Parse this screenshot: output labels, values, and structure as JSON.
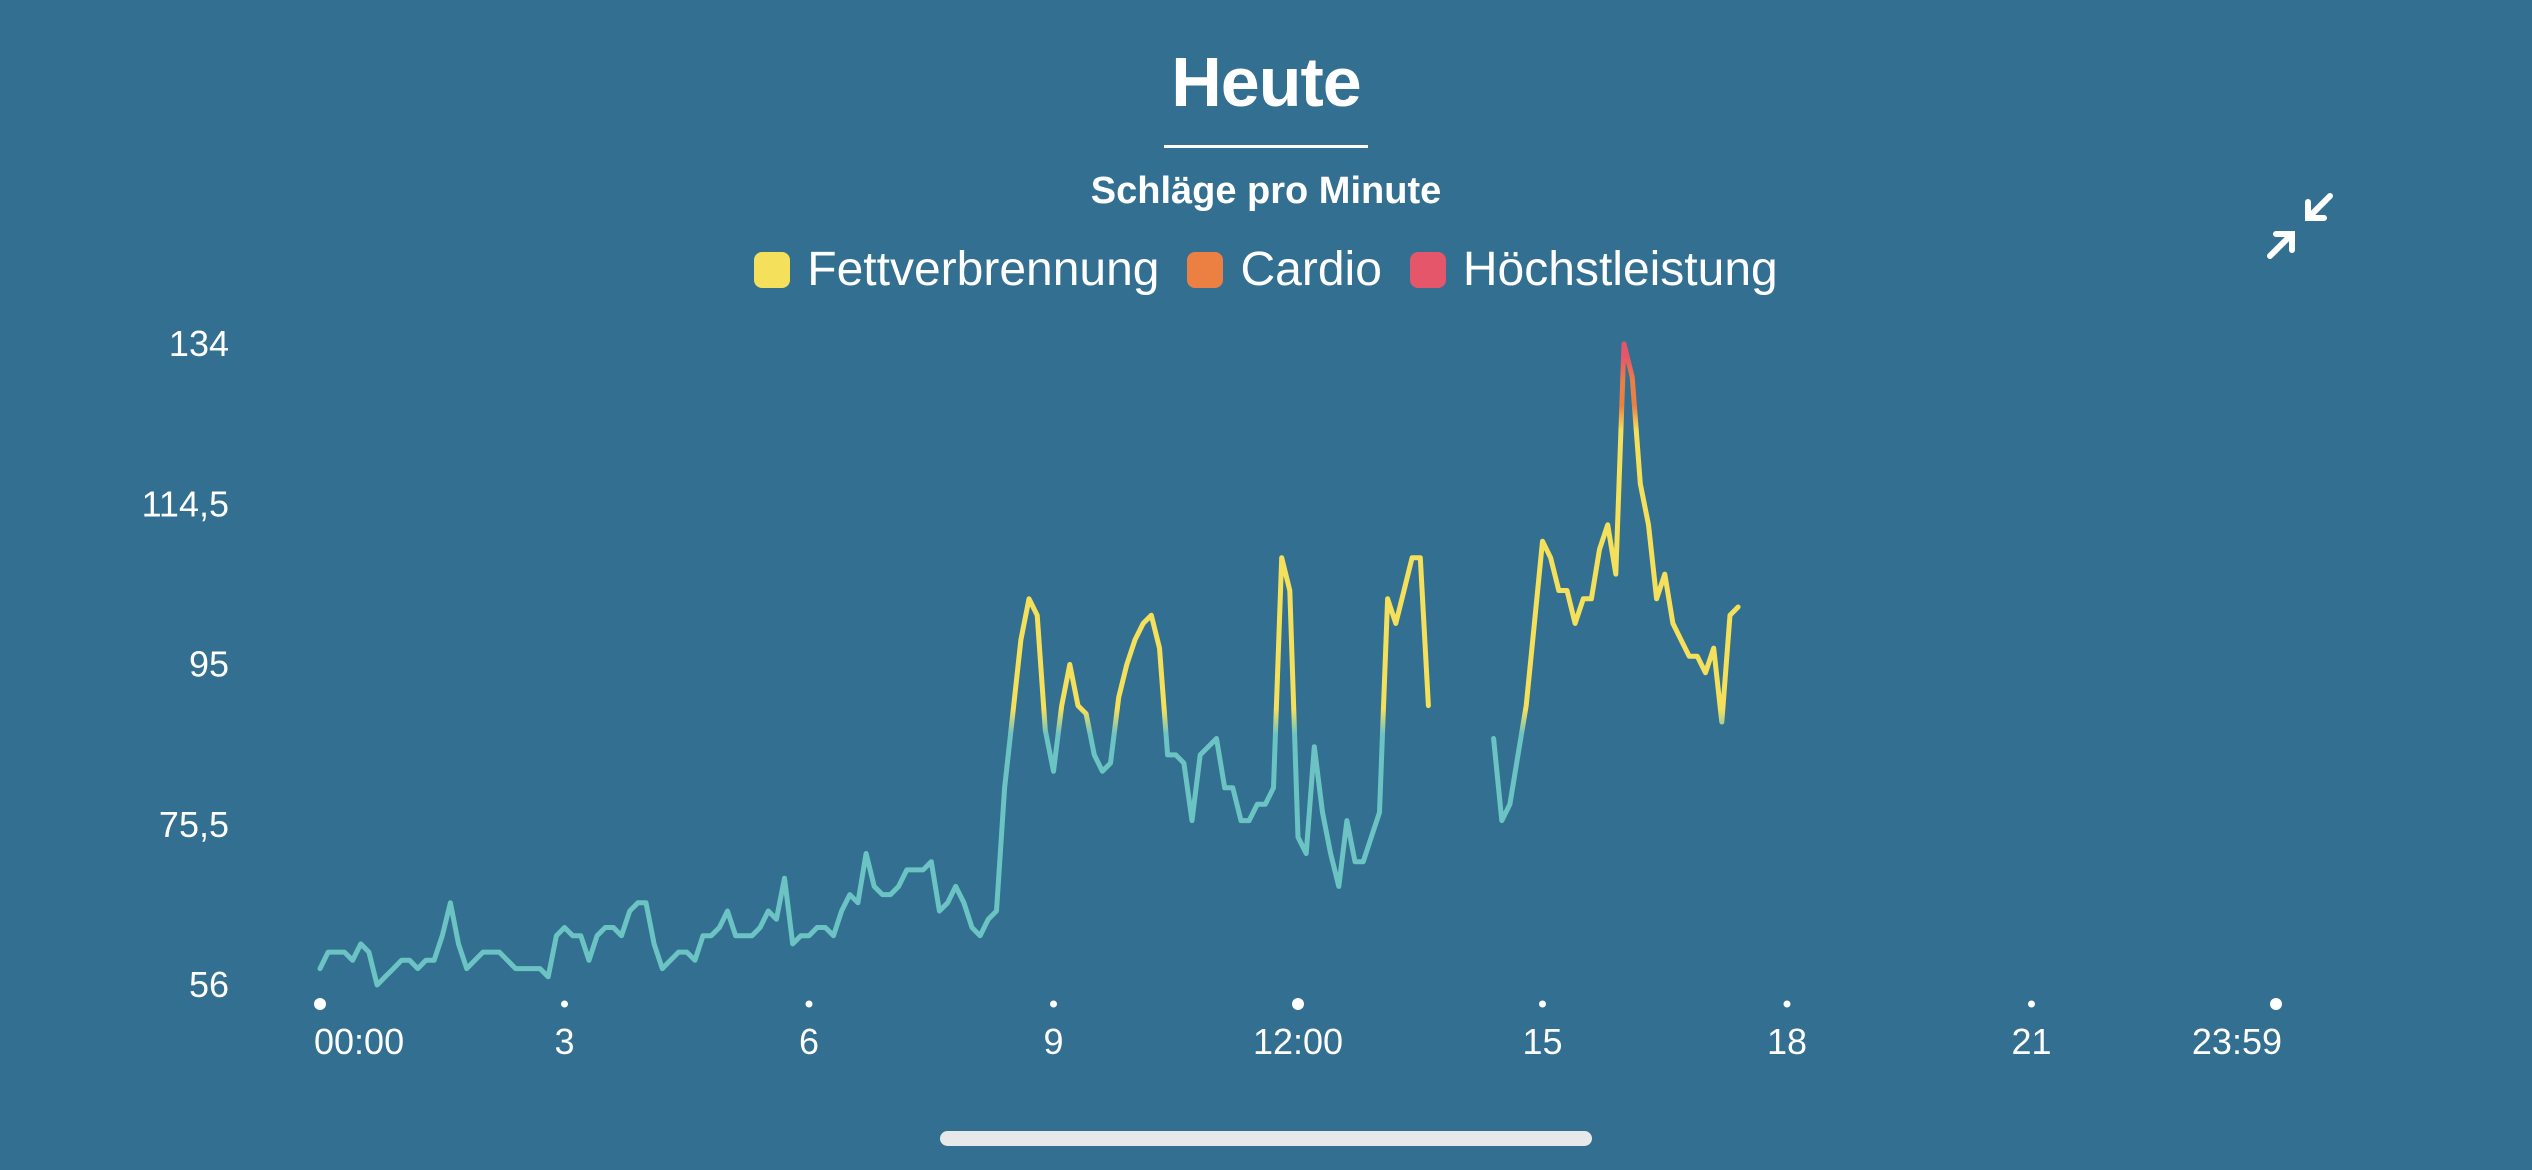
{
  "title": "Heute",
  "subtitle": "Schläge pro Minute",
  "legend": [
    {
      "label": "Fettverbrennung",
      "color": "#f4e05a"
    },
    {
      "label": "Cardio",
      "color": "#ec7f42"
    },
    {
      "label": "Höchstleistung",
      "color": "#e5566a"
    }
  ],
  "collapse_button": {
    "icon": "collapse-arrows-icon"
  },
  "chart_data": {
    "type": "line",
    "title": "Heute",
    "ylabel": "Schläge pro Minute",
    "ylim": [
      56,
      134
    ],
    "yticks": [
      {
        "value": 134,
        "label": "134"
      },
      {
        "value": 114.5,
        "label": "114,5"
      },
      {
        "value": 95,
        "label": "95"
      },
      {
        "value": 75.5,
        "label": "75,5"
      },
      {
        "value": 56,
        "label": "56"
      }
    ],
    "xlim": [
      0,
      24
    ],
    "xticks": [
      {
        "value": 0,
        "label": "00:00",
        "major": true
      },
      {
        "value": 3,
        "label": "3",
        "major": false
      },
      {
        "value": 6,
        "label": "6",
        "major": false
      },
      {
        "value": 9,
        "label": "9",
        "major": false
      },
      {
        "value": 12,
        "label": "12:00",
        "major": true
      },
      {
        "value": 15,
        "label": "15",
        "major": false
      },
      {
        "value": 18,
        "label": "18",
        "major": false
      },
      {
        "value": 21,
        "label": "21",
        "major": false
      },
      {
        "value": 24,
        "label": "23:59",
        "major": true
      }
    ],
    "zones": [
      {
        "name": "Fettverbrennung",
        "min": 88,
        "color": "#f4e05a"
      },
      {
        "name": "Cardio",
        "min": 125,
        "color": "#ec7f42"
      },
      {
        "name": "Höchstleistung",
        "min": 131,
        "color": "#e5566a"
      }
    ],
    "base_color": "#6cc3c3",
    "series": [
      {
        "values": [
          [
            0.0,
            58
          ],
          [
            0.1,
            60
          ],
          [
            0.2,
            60
          ],
          [
            0.3,
            60
          ],
          [
            0.4,
            59
          ],
          [
            0.5,
            61
          ],
          [
            0.6,
            60
          ],
          [
            0.7,
            56
          ],
          [
            0.8,
            57
          ],
          [
            0.9,
            58
          ],
          [
            1.0,
            59
          ],
          [
            1.1,
            59
          ],
          [
            1.2,
            58
          ],
          [
            1.3,
            59
          ],
          [
            1.4,
            59
          ],
          [
            1.5,
            62
          ],
          [
            1.6,
            66
          ],
          [
            1.7,
            61
          ],
          [
            1.8,
            58
          ],
          [
            1.9,
            59
          ],
          [
            2.0,
            60
          ],
          [
            2.1,
            60
          ],
          [
            2.2,
            60
          ],
          [
            2.3,
            59
          ],
          [
            2.4,
            58
          ],
          [
            2.5,
            58
          ],
          [
            2.6,
            58
          ],
          [
            2.7,
            58
          ],
          [
            2.8,
            57
          ],
          [
            2.9,
            62
          ],
          [
            3.0,
            63
          ],
          [
            3.1,
            62
          ],
          [
            3.2,
            62
          ],
          [
            3.3,
            59
          ],
          [
            3.4,
            62
          ],
          [
            3.5,
            63
          ],
          [
            3.6,
            63
          ],
          [
            3.7,
            62
          ],
          [
            3.8,
            65
          ],
          [
            3.9,
            66
          ],
          [
            4.0,
            66
          ],
          [
            4.1,
            61
          ],
          [
            4.2,
            58
          ],
          [
            4.3,
            59
          ],
          [
            4.4,
            60
          ],
          [
            4.5,
            60
          ],
          [
            4.6,
            59
          ],
          [
            4.7,
            62
          ],
          [
            4.8,
            62
          ],
          [
            4.9,
            63
          ],
          [
            5.0,
            65
          ],
          [
            5.1,
            62
          ],
          [
            5.2,
            62
          ],
          [
            5.3,
            62
          ],
          [
            5.4,
            63
          ],
          [
            5.5,
            65
          ],
          [
            5.6,
            64
          ],
          [
            5.7,
            69
          ],
          [
            5.8,
            61
          ],
          [
            5.9,
            62
          ],
          [
            6.0,
            62
          ],
          [
            6.1,
            63
          ],
          [
            6.2,
            63
          ],
          [
            6.3,
            62
          ],
          [
            6.4,
            65
          ],
          [
            6.5,
            67
          ],
          [
            6.6,
            66
          ],
          [
            6.7,
            72
          ],
          [
            6.8,
            68
          ],
          [
            6.9,
            67
          ],
          [
            7.0,
            67
          ],
          [
            7.1,
            68
          ],
          [
            7.2,
            70
          ],
          [
            7.3,
            70
          ],
          [
            7.4,
            70
          ],
          [
            7.5,
            71
          ],
          [
            7.6,
            65
          ],
          [
            7.7,
            66
          ],
          [
            7.8,
            68
          ],
          [
            7.9,
            66
          ],
          [
            8.0,
            63
          ],
          [
            8.1,
            62
          ],
          [
            8.2,
            64
          ],
          [
            8.3,
            65
          ],
          [
            8.4,
            80
          ],
          [
            8.5,
            89
          ],
          [
            8.6,
            98
          ],
          [
            8.7,
            103
          ],
          [
            8.8,
            101
          ],
          [
            8.9,
            87
          ],
          [
            9.0,
            82
          ],
          [
            9.1,
            90
          ],
          [
            9.2,
            95
          ],
          [
            9.3,
            90
          ],
          [
            9.4,
            89
          ],
          [
            9.5,
            84
          ],
          [
            9.6,
            82
          ],
          [
            9.7,
            83
          ],
          [
            9.8,
            91
          ],
          [
            9.9,
            95
          ],
          [
            10.0,
            98
          ],
          [
            10.1,
            100
          ],
          [
            10.2,
            101
          ],
          [
            10.3,
            97
          ],
          [
            10.4,
            84
          ],
          [
            10.5,
            84
          ],
          [
            10.6,
            83
          ],
          [
            10.7,
            76
          ],
          [
            10.8,
            84
          ],
          [
            10.9,
            85
          ],
          [
            11.0,
            86
          ],
          [
            11.1,
            80
          ],
          [
            11.2,
            80
          ],
          [
            11.3,
            76
          ],
          [
            11.4,
            76
          ],
          [
            11.5,
            78
          ],
          [
            11.6,
            78
          ],
          [
            11.7,
            80
          ],
          [
            11.8,
            108
          ],
          [
            11.9,
            104
          ],
          [
            12.0,
            74
          ],
          [
            12.1,
            72
          ],
          [
            12.2,
            85
          ],
          [
            12.3,
            77
          ],
          [
            12.4,
            72
          ],
          [
            12.5,
            68
          ],
          [
            12.6,
            76
          ],
          [
            12.7,
            71
          ],
          [
            12.8,
            71
          ],
          [
            12.9,
            74
          ],
          [
            13.0,
            77
          ],
          [
            13.1,
            103
          ],
          [
            13.2,
            100
          ],
          [
            13.3,
            104
          ],
          [
            13.4,
            108
          ],
          [
            13.5,
            108
          ],
          [
            13.6,
            90
          ]
        ]
      },
      {
        "values": [
          [
            14.4,
            86
          ],
          [
            14.5,
            76
          ],
          [
            14.6,
            78
          ],
          [
            14.7,
            84
          ],
          [
            14.8,
            90
          ],
          [
            14.9,
            100
          ],
          [
            15.0,
            110
          ],
          [
            15.1,
            108
          ],
          [
            15.2,
            104
          ],
          [
            15.3,
            104
          ],
          [
            15.4,
            100
          ],
          [
            15.5,
            103
          ],
          [
            15.6,
            103
          ],
          [
            15.7,
            109
          ],
          [
            15.8,
            112
          ],
          [
            15.9,
            106
          ],
          [
            16.0,
            134
          ],
          [
            16.1,
            130
          ],
          [
            16.2,
            117
          ],
          [
            16.3,
            112
          ],
          [
            16.4,
            103
          ],
          [
            16.5,
            106
          ],
          [
            16.6,
            100
          ],
          [
            16.7,
            98
          ],
          [
            16.8,
            96
          ],
          [
            16.9,
            96
          ],
          [
            17.0,
            94
          ],
          [
            17.1,
            97
          ],
          [
            17.2,
            88
          ],
          [
            17.3,
            101
          ],
          [
            17.4,
            102
          ]
        ]
      }
    ]
  }
}
